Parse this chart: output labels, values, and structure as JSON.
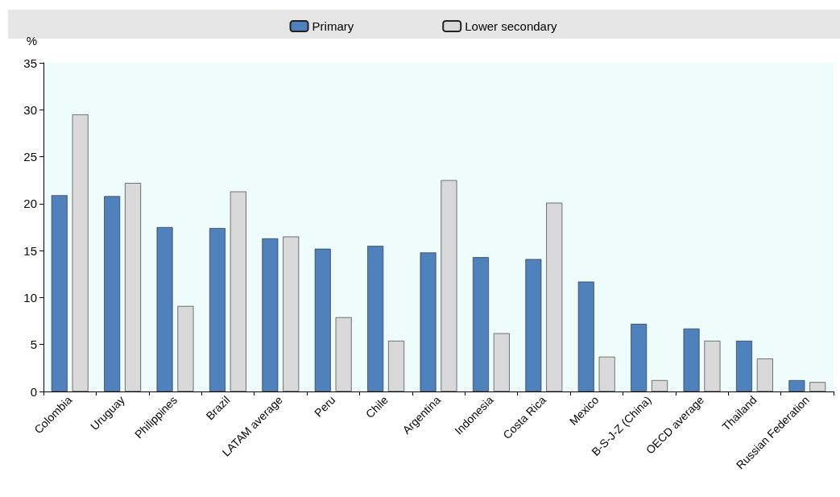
{
  "chart_data": {
    "type": "bar",
    "ylabel": "%",
    "categories": [
      "Colombia",
      "Uruguay",
      "Philippines",
      "Brazil",
      "LATAM average",
      "Peru",
      "Chile",
      "Argentina",
      "Indonesia",
      "Costa Rica",
      "Mexico",
      "B-S-J-Z (China)",
      "OECD average",
      "Thailand",
      "Russian Federation"
    ],
    "series": [
      {
        "name": "Primary",
        "color": "#4f81bd",
        "values": [
          20.9,
          20.8,
          17.5,
          17.4,
          16.3,
          15.2,
          15.5,
          14.8,
          14.3,
          14.1,
          11.7,
          7.2,
          6.7,
          5.4,
          1.2
        ]
      },
      {
        "name": "Lower secondary",
        "color": "#d9d9d9",
        "values": [
          29.5,
          22.2,
          9.1,
          21.3,
          16.5,
          7.9,
          5.4,
          22.5,
          6.2,
          20.1,
          3.7,
          1.2,
          5.4,
          3.5,
          1.0
        ]
      }
    ],
    "ylim": [
      0,
      35
    ],
    "yticks": [
      0,
      5,
      10,
      15,
      20,
      25,
      30,
      35
    ],
    "grid": false,
    "legend": "top"
  }
}
